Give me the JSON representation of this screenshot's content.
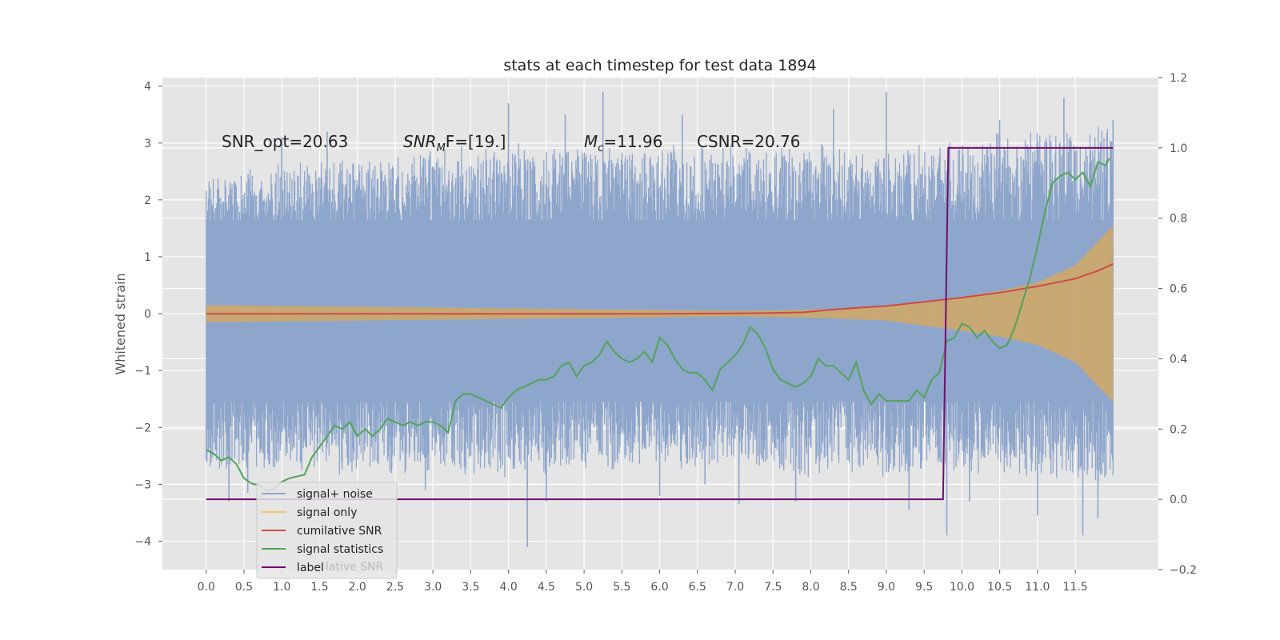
{
  "chart_data": {
    "type": "line",
    "title": "stats at each timestep for test data 1894",
    "ylabel": "Whitened strain",
    "xlabel": "",
    "xlim": [
      -0.58,
      12.6
    ],
    "ylim": [
      -4.5,
      4.15
    ],
    "ylim_right": [
      -0.2,
      1.2
    ],
    "grid": true,
    "x_ticks": [
      "0.0",
      "0.5",
      "1.0",
      "1.5",
      "2.0",
      "2.5",
      "3.0",
      "3.5",
      "4.0",
      "4.5",
      "5.0",
      "5.5",
      "6.0",
      "6.5",
      "7.0",
      "7.5",
      "8.0",
      "8.5",
      "9.0",
      "9.5",
      "10.0",
      "10.5",
      "11.0",
      "11.5"
    ],
    "y_ticks_left": [
      "4",
      "3",
      "2",
      "1",
      "0",
      "−1",
      "−2",
      "−3",
      "−4"
    ],
    "y_ticks_right": [
      "1.2",
      "1.0",
      "0.8",
      "0.6",
      "0.4",
      "0.2",
      "0.0",
      "−0.2"
    ],
    "annotations": [
      {
        "text": "SNR_opt=20.63",
        "x": 0.2,
        "y": 3.0
      },
      {
        "base": "SNR",
        "sub": "M",
        "rest": "F=[19.]",
        "x": 2.6,
        "y": 3.0
      },
      {
        "base": "M",
        "sub": "c",
        "rest": "=11.96",
        "x": 5.0,
        "y": 3.0
      },
      {
        "text": "CSNR=20.76",
        "x": 6.5,
        "y": 3.0
      }
    ],
    "legend": {
      "placement": "lower-left",
      "entries": [
        "signal+ noise",
        "signal only",
        "cumilative SNR",
        "signal statistics",
        "label"
      ],
      "ghost_text": "lative SNR"
    },
    "series": [
      {
        "name": "signal+ noise",
        "axis": "left",
        "color": "#8fa6cc",
        "kind": "noise-band",
        "x_range": [
          0,
          12.0
        ],
        "envelope_upper": [
          [
            0,
            2.4
          ],
          [
            1,
            2.7
          ],
          [
            2,
            2.8
          ],
          [
            3,
            3.0
          ],
          [
            4,
            3.0
          ],
          [
            5,
            3.0
          ],
          [
            6,
            3.0
          ],
          [
            7,
            3.0
          ],
          [
            8,
            3.0
          ],
          [
            9,
            3.0
          ],
          [
            10,
            3.1
          ],
          [
            11,
            3.3
          ],
          [
            12,
            3.4
          ]
        ],
        "envelope_lower": [
          [
            0,
            -2.9
          ],
          [
            1,
            -2.8
          ],
          [
            2,
            -2.9
          ],
          [
            3,
            -2.8
          ],
          [
            4,
            -2.9
          ],
          [
            5,
            -2.8
          ],
          [
            6,
            -2.8
          ],
          [
            7,
            -2.8
          ],
          [
            8,
            -2.9
          ],
          [
            9,
            -2.9
          ],
          [
            10,
            -2.9
          ],
          [
            11,
            -3.0
          ],
          [
            12,
            -3.1
          ]
        ],
        "core": [
          1.65,
          -1.55
        ],
        "peaks": [
          [
            0.3,
            -3.3
          ],
          [
            0.55,
            -3.15
          ],
          [
            1.0,
            3.1
          ],
          [
            1.6,
            3.2
          ],
          [
            2.45,
            -2.8
          ],
          [
            2.9,
            -3.1
          ],
          [
            3.5,
            -2.5
          ],
          [
            4.0,
            3.7
          ],
          [
            4.25,
            -4.1
          ],
          [
            4.5,
            -3.3
          ],
          [
            4.75,
            3.5
          ],
          [
            5.25,
            3.9
          ],
          [
            6.0,
            -3.2
          ],
          [
            6.3,
            3.5
          ],
          [
            6.6,
            -3.0
          ],
          [
            7.05,
            -3.35
          ],
          [
            7.8,
            -3.3
          ],
          [
            8.3,
            3.6
          ],
          [
            9.0,
            3.9
          ],
          [
            9.3,
            -3.45
          ],
          [
            9.8,
            -3.9
          ],
          [
            10.1,
            -3.3
          ],
          [
            10.5,
            3.4
          ],
          [
            11.0,
            -3.55
          ],
          [
            11.35,
            3.8
          ],
          [
            11.6,
            -3.9
          ],
          [
            11.8,
            -3.6
          ],
          [
            12.0,
            3.4
          ]
        ]
      },
      {
        "name": "signal only",
        "axis": "left",
        "color": "#d6a85e",
        "kind": "chirp-envelope",
        "amplitude": [
          [
            0,
            0.15
          ],
          [
            7.0,
            0.05
          ],
          [
            8.0,
            0.07
          ],
          [
            9.0,
            0.12
          ],
          [
            10.0,
            0.3
          ],
          [
            10.5,
            0.4
          ],
          [
            11.0,
            0.55
          ],
          [
            11.5,
            0.85
          ],
          [
            12.0,
            1.55
          ]
        ]
      },
      {
        "name": "cumilative SNR",
        "axis": "right",
        "color": "#cc4c47",
        "x": [
          0,
          1,
          2,
          3,
          4,
          5,
          6,
          7,
          7.5,
          7.9,
          8.3,
          8.7,
          9.0,
          9.5,
          10.0,
          10.5,
          11.0,
          11.5,
          11.8,
          12.0
        ],
        "values": [
          0.528,
          0.528,
          0.528,
          0.528,
          0.528,
          0.528,
          0.528,
          0.529,
          0.53,
          0.532,
          0.54,
          0.546,
          0.55,
          0.562,
          0.574,
          0.588,
          0.606,
          0.628,
          0.65,
          0.67
        ]
      },
      {
        "name": "signal statistics",
        "axis": "right",
        "color": "#52a35b",
        "x": [
          0.0,
          0.1,
          0.2,
          0.3,
          0.4,
          0.5,
          0.6,
          0.7,
          0.8,
          0.9,
          1.0,
          1.1,
          1.2,
          1.3,
          1.4,
          1.5,
          1.6,
          1.7,
          1.8,
          1.9,
          2.0,
          2.1,
          2.2,
          2.3,
          2.4,
          2.5,
          2.6,
          2.7,
          2.8,
          2.9,
          3.0,
          3.1,
          3.2,
          3.3,
          3.4,
          3.5,
          3.6,
          3.7,
          3.8,
          3.9,
          4.0,
          4.1,
          4.2,
          4.3,
          4.4,
          4.5,
          4.6,
          4.7,
          4.8,
          4.9,
          5.0,
          5.1,
          5.2,
          5.3,
          5.4,
          5.5,
          5.6,
          5.7,
          5.8,
          5.9,
          6.0,
          6.1,
          6.2,
          6.3,
          6.4,
          6.5,
          6.6,
          6.7,
          6.8,
          6.9,
          7.0,
          7.1,
          7.2,
          7.3,
          7.4,
          7.5,
          7.6,
          7.7,
          7.8,
          7.9,
          8.0,
          8.1,
          8.2,
          8.3,
          8.4,
          8.5,
          8.6,
          8.7,
          8.8,
          8.9,
          9.0,
          9.1,
          9.2,
          9.3,
          9.4,
          9.5,
          9.6,
          9.7,
          9.8,
          9.9,
          10.0,
          10.1,
          10.2,
          10.3,
          10.4,
          10.5,
          10.6,
          10.7,
          10.8,
          10.9,
          11.0,
          11.1,
          11.2,
          11.3,
          11.4,
          11.5,
          11.6,
          11.7,
          11.8,
          11.9,
          11.95
        ],
        "values": [
          0.14,
          0.13,
          0.11,
          0.12,
          0.1,
          0.06,
          0.045,
          0.04,
          0.025,
          0.03,
          0.05,
          0.06,
          0.065,
          0.07,
          0.12,
          0.15,
          0.18,
          0.21,
          0.2,
          0.22,
          0.18,
          0.2,
          0.18,
          0.2,
          0.23,
          0.22,
          0.21,
          0.22,
          0.21,
          0.22,
          0.22,
          0.21,
          0.19,
          0.28,
          0.3,
          0.3,
          0.29,
          0.28,
          0.27,
          0.26,
          0.29,
          0.31,
          0.32,
          0.33,
          0.34,
          0.34,
          0.35,
          0.38,
          0.39,
          0.35,
          0.38,
          0.39,
          0.41,
          0.45,
          0.42,
          0.4,
          0.39,
          0.4,
          0.42,
          0.39,
          0.46,
          0.44,
          0.4,
          0.37,
          0.36,
          0.36,
          0.34,
          0.31,
          0.37,
          0.39,
          0.41,
          0.44,
          0.49,
          0.47,
          0.43,
          0.37,
          0.34,
          0.33,
          0.32,
          0.33,
          0.35,
          0.4,
          0.38,
          0.38,
          0.36,
          0.34,
          0.39,
          0.31,
          0.27,
          0.3,
          0.28,
          0.28,
          0.28,
          0.28,
          0.31,
          0.29,
          0.34,
          0.36,
          0.45,
          0.46,
          0.5,
          0.49,
          0.46,
          0.48,
          0.45,
          0.43,
          0.44,
          0.49,
          0.56,
          0.63,
          0.72,
          0.82,
          0.9,
          0.92,
          0.93,
          0.91,
          0.93,
          0.89,
          0.96,
          0.95,
          0.97
        ]
      },
      {
        "name": "label",
        "axis": "right",
        "color": "#6f0f6f",
        "x": [
          0,
          9.75,
          9.82,
          12.0
        ],
        "values": [
          0.0,
          0.0,
          1.0,
          1.0
        ]
      }
    ]
  }
}
